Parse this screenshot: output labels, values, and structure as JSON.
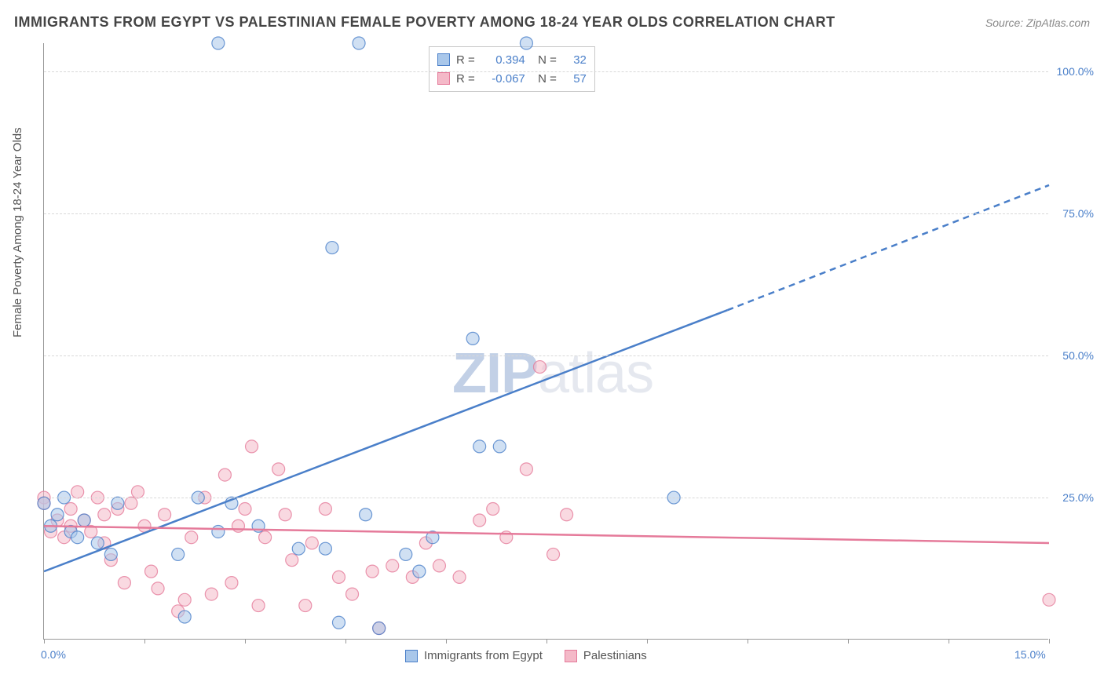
{
  "title": "IMMIGRANTS FROM EGYPT VS PALESTINIAN FEMALE POVERTY AMONG 18-24 YEAR OLDS CORRELATION CHART",
  "source": "Source: ZipAtlas.com",
  "y_axis_label": "Female Poverty Among 18-24 Year Olds",
  "watermark": "ZIPatlas",
  "chart": {
    "type": "scatter",
    "xlim": [
      0,
      15
    ],
    "ylim": [
      0,
      105
    ],
    "x_ticks": [
      0,
      1.5,
      3,
      4.5,
      6,
      7.5,
      9,
      10.5,
      12,
      13.5,
      15
    ],
    "x_tick_labels_shown": {
      "0": "0.0%",
      "15": "15.0%"
    },
    "y_ticks": [
      25,
      50,
      75,
      100
    ],
    "y_tick_labels": [
      "25.0%",
      "50.0%",
      "75.0%",
      "100.0%"
    ],
    "background_color": "#ffffff",
    "grid_color": "#d8d8d8",
    "axis_color": "#999999",
    "tick_label_color": "#4a7fc9",
    "marker_radius": 8,
    "marker_opacity": 0.55,
    "line_width": 2.5
  },
  "series": [
    {
      "name": "Immigrants from Egypt",
      "color_fill": "#a9c7ea",
      "color_stroke": "#4a7fc9",
      "R": "0.394",
      "N": "32",
      "trend": {
        "x1": 0,
        "y1": 12,
        "x2": 10.2,
        "y2": 58,
        "extend_x2": 15,
        "extend_y2": 80,
        "dash_from": 10.2
      },
      "points": [
        [
          0.1,
          20
        ],
        [
          0.2,
          22
        ],
        [
          0.3,
          25
        ],
        [
          0.4,
          19
        ],
        [
          0.6,
          21
        ],
        [
          0.8,
          17
        ],
        [
          1.0,
          15
        ],
        [
          1.1,
          24
        ],
        [
          2.0,
          15
        ],
        [
          2.1,
          4
        ],
        [
          2.3,
          25
        ],
        [
          2.6,
          105
        ],
        [
          2.6,
          19
        ],
        [
          2.8,
          24
        ],
        [
          3.2,
          20
        ],
        [
          3.8,
          16
        ],
        [
          4.2,
          16
        ],
        [
          4.3,
          69
        ],
        [
          4.4,
          3
        ],
        [
          4.7,
          105
        ],
        [
          4.8,
          22
        ],
        [
          5.0,
          2
        ],
        [
          5.4,
          15
        ],
        [
          5.6,
          12
        ],
        [
          5.8,
          18
        ],
        [
          6.4,
          53
        ],
        [
          6.5,
          34
        ],
        [
          6.8,
          34
        ],
        [
          7.2,
          105
        ],
        [
          9.4,
          25
        ],
        [
          0.5,
          18
        ],
        [
          0.0,
          24
        ]
      ]
    },
    {
      "name": "Palestinians",
      "color_fill": "#f4b9c8",
      "color_stroke": "#e57a9a",
      "R": "-0.067",
      "N": "57",
      "trend": {
        "x1": 0,
        "y1": 20,
        "x2": 15,
        "y2": 17
      },
      "points": [
        [
          0.0,
          25
        ],
        [
          0.0,
          24
        ],
        [
          0.1,
          19
        ],
        [
          0.2,
          21
        ],
        [
          0.3,
          18
        ],
        [
          0.4,
          23
        ],
        [
          0.5,
          26
        ],
        [
          0.6,
          21
        ],
        [
          0.7,
          19
        ],
        [
          0.8,
          25
        ],
        [
          0.9,
          22
        ],
        [
          1.0,
          14
        ],
        [
          1.1,
          23
        ],
        [
          1.2,
          10
        ],
        [
          1.3,
          24
        ],
        [
          1.4,
          26
        ],
        [
          1.5,
          20
        ],
        [
          1.7,
          9
        ],
        [
          1.8,
          22
        ],
        [
          2.0,
          5
        ],
        [
          2.1,
          7
        ],
        [
          2.2,
          18
        ],
        [
          2.4,
          25
        ],
        [
          2.5,
          8
        ],
        [
          2.7,
          29
        ],
        [
          2.8,
          10
        ],
        [
          3.0,
          23
        ],
        [
          3.1,
          34
        ],
        [
          3.2,
          6
        ],
        [
          3.3,
          18
        ],
        [
          3.5,
          30
        ],
        [
          3.7,
          14
        ],
        [
          3.9,
          6
        ],
        [
          4.0,
          17
        ],
        [
          4.2,
          23
        ],
        [
          4.4,
          11
        ],
        [
          4.6,
          8
        ],
        [
          4.9,
          12
        ],
        [
          5.0,
          2
        ],
        [
          5.2,
          13
        ],
        [
          5.5,
          11
        ],
        [
          5.7,
          17
        ],
        [
          5.9,
          13
        ],
        [
          6.2,
          11
        ],
        [
          6.5,
          21
        ],
        [
          6.7,
          23
        ],
        [
          6.9,
          18
        ],
        [
          7.2,
          30
        ],
        [
          7.4,
          48
        ],
        [
          7.6,
          15
        ],
        [
          7.8,
          22
        ],
        [
          0.4,
          20
        ],
        [
          0.9,
          17
        ],
        [
          1.6,
          12
        ],
        [
          2.9,
          20
        ],
        [
          3.6,
          22
        ],
        [
          15.0,
          7
        ]
      ]
    }
  ],
  "legend_bottom": [
    {
      "label": "Immigrants from Egypt",
      "fill": "#a9c7ea",
      "stroke": "#4a7fc9"
    },
    {
      "label": "Palestinians",
      "fill": "#f4b9c8",
      "stroke": "#e57a9a"
    }
  ]
}
